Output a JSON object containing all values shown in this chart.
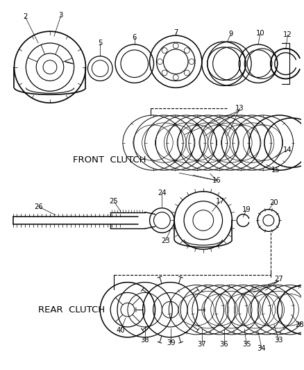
{
  "bg_color": "#ffffff",
  "line_color": "#000000",
  "front_clutch_label": "FRONT  CLUTCH",
  "rear_clutch_label": "REAR  CLUTCH",
  "figsize": [
    4.38,
    5.33
  ],
  "dpi": 100
}
